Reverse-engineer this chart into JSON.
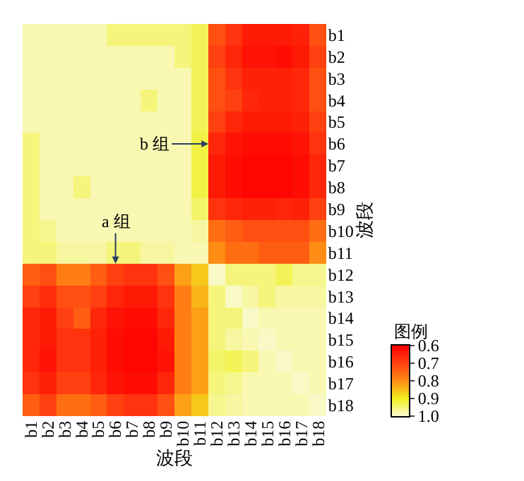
{
  "chart_data": {
    "type": "heatmap",
    "xlabel": "波段",
    "ylabel": "波段",
    "clabel": "图例",
    "categories": [
      "b1",
      "b2",
      "b3",
      "b4",
      "b5",
      "b6",
      "b7",
      "b8",
      "b9",
      "b10",
      "b11",
      "b12",
      "b13",
      "b14",
      "b15",
      "b16",
      "b17",
      "b18"
    ],
    "y_categories": [
      "b1",
      "b2",
      "b3",
      "b4",
      "b5",
      "b6",
      "b7",
      "b8",
      "b9",
      "b10",
      "b11",
      "b12",
      "b13",
      "b14",
      "b15",
      "b16",
      "b17",
      "b18"
    ],
    "cells": [
      [
        0.98,
        0.98,
        0.98,
        0.98,
        0.98,
        0.95,
        0.95,
        0.95,
        0.95,
        0.95,
        0.93,
        0.72,
        0.68,
        0.64,
        0.64,
        0.64,
        0.65,
        0.72
      ],
      [
        0.98,
        0.98,
        0.98,
        0.98,
        0.98,
        0.98,
        0.98,
        0.98,
        0.98,
        0.95,
        0.93,
        0.7,
        0.66,
        0.63,
        0.63,
        0.62,
        0.64,
        0.7
      ],
      [
        0.98,
        0.98,
        0.98,
        0.98,
        0.98,
        0.98,
        0.98,
        0.98,
        0.98,
        0.98,
        0.93,
        0.72,
        0.68,
        0.65,
        0.65,
        0.65,
        0.66,
        0.72
      ],
      [
        0.98,
        0.98,
        0.98,
        0.98,
        0.98,
        0.98,
        0.98,
        0.95,
        0.98,
        0.98,
        0.93,
        0.72,
        0.7,
        0.66,
        0.65,
        0.65,
        0.66,
        0.72
      ],
      [
        0.98,
        0.98,
        0.98,
        0.98,
        0.98,
        0.98,
        0.98,
        0.98,
        0.98,
        0.98,
        0.93,
        0.7,
        0.66,
        0.64,
        0.64,
        0.64,
        0.65,
        0.7
      ],
      [
        0.95,
        0.98,
        0.98,
        0.98,
        0.98,
        0.98,
        0.98,
        0.98,
        0.98,
        0.98,
        0.92,
        0.66,
        0.63,
        0.62,
        0.62,
        0.62,
        0.63,
        0.68
      ],
      [
        0.95,
        0.98,
        0.98,
        0.98,
        0.98,
        0.98,
        0.98,
        0.98,
        0.98,
        0.98,
        0.92,
        0.64,
        0.62,
        0.61,
        0.61,
        0.61,
        0.62,
        0.66
      ],
      [
        0.95,
        0.98,
        0.98,
        0.95,
        0.98,
        0.98,
        0.98,
        0.98,
        0.98,
        0.98,
        0.92,
        0.64,
        0.62,
        0.61,
        0.61,
        0.61,
        0.62,
        0.66
      ],
      [
        0.95,
        0.98,
        0.98,
        0.98,
        0.98,
        0.98,
        0.98,
        0.98,
        0.98,
        0.98,
        0.94,
        0.68,
        0.66,
        0.65,
        0.65,
        0.66,
        0.65,
        0.7
      ],
      [
        0.95,
        0.96,
        0.98,
        0.98,
        0.98,
        0.98,
        0.98,
        0.98,
        0.98,
        0.98,
        0.97,
        0.76,
        0.74,
        0.72,
        0.72,
        0.72,
        0.72,
        0.76
      ],
      [
        0.95,
        0.95,
        0.97,
        0.97,
        0.97,
        0.95,
        0.95,
        0.97,
        0.97,
        0.98,
        0.98,
        0.8,
        0.76,
        0.76,
        0.74,
        0.74,
        0.74,
        0.8
      ],
      [
        0.74,
        0.72,
        0.78,
        0.78,
        0.74,
        0.7,
        0.68,
        0.68,
        0.72,
        0.82,
        0.86,
        0.99,
        0.95,
        0.95,
        0.95,
        0.93,
        0.96,
        0.96
      ],
      [
        0.7,
        0.67,
        0.72,
        0.72,
        0.7,
        0.66,
        0.64,
        0.64,
        0.68,
        0.78,
        0.84,
        0.95,
        0.99,
        0.97,
        0.95,
        0.97,
        0.97,
        0.97
      ],
      [
        0.66,
        0.64,
        0.7,
        0.74,
        0.66,
        0.63,
        0.62,
        0.62,
        0.66,
        0.78,
        0.82,
        0.95,
        0.95,
        0.99,
        0.98,
        0.98,
        0.98,
        0.98
      ],
      [
        0.66,
        0.64,
        0.68,
        0.68,
        0.65,
        0.62,
        0.61,
        0.61,
        0.64,
        0.78,
        0.82,
        0.95,
        0.97,
        0.98,
        0.99,
        0.98,
        0.98,
        0.98
      ],
      [
        0.66,
        0.63,
        0.68,
        0.68,
        0.65,
        0.62,
        0.61,
        0.61,
        0.63,
        0.78,
        0.82,
        0.94,
        0.93,
        0.95,
        0.98,
        0.99,
        0.98,
        0.98
      ],
      [
        0.68,
        0.65,
        0.7,
        0.7,
        0.66,
        0.63,
        0.62,
        0.62,
        0.66,
        0.78,
        0.82,
        0.95,
        0.96,
        0.98,
        0.98,
        0.98,
        0.99,
        0.98
      ],
      [
        0.74,
        0.7,
        0.76,
        0.76,
        0.74,
        0.7,
        0.68,
        0.68,
        0.72,
        0.82,
        0.86,
        0.96,
        0.97,
        0.98,
        0.98,
        0.98,
        0.98,
        0.99
      ]
    ],
    "clim": [
      1.0,
      0.6
    ],
    "cticks": [
      0.6,
      0.7,
      0.8,
      0.9,
      {
        "value": 1,
        "label": "1.0"
      }
    ],
    "annotations": [
      "a 组",
      "b 组"
    ]
  }
}
